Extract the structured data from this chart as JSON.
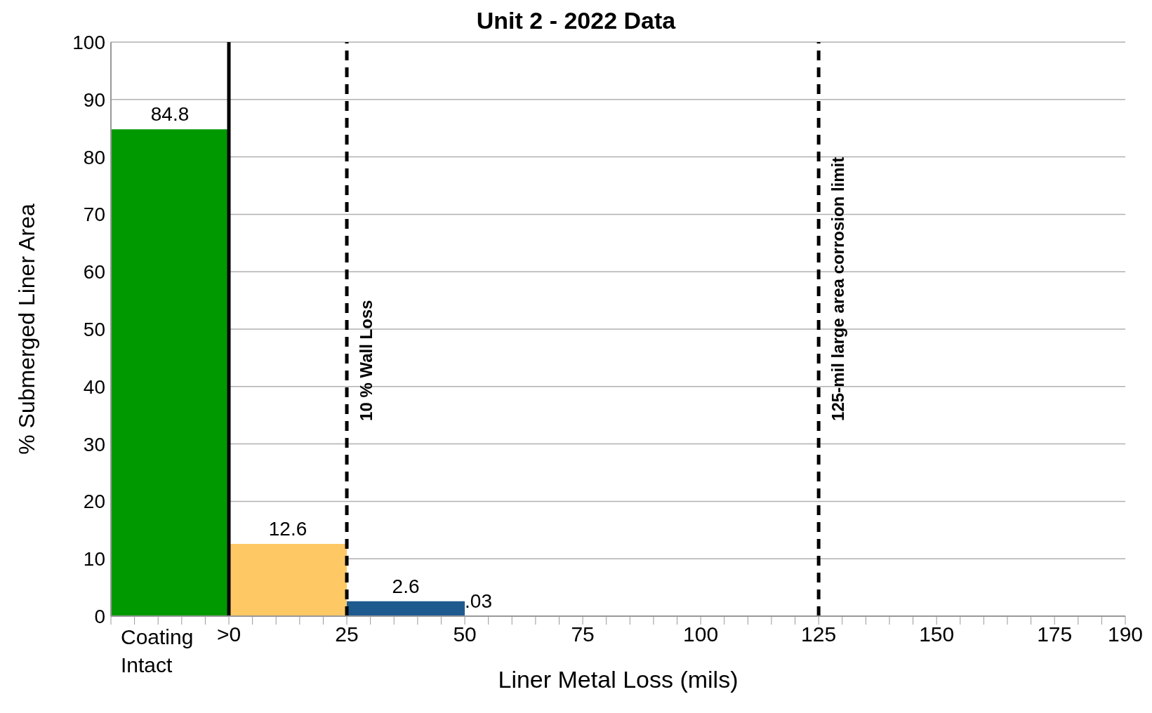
{
  "chart_data": {
    "type": "histogram",
    "title": "Unit 2 - 2022 Data",
    "xlabel": "Liner Metal Loss (mils)",
    "ylabel": "% Submerged Liner Area",
    "bins": [
      -25,
      0,
      25,
      50,
      54
    ],
    "values": [
      84.8,
      12.6,
      2.6,
      0.03
    ],
    "colors": [
      "#009900",
      "#fec965",
      "#1f5a8f",
      "#cc0000"
    ],
    "value_labels": [
      "84.8",
      "12.6",
      "2.6",
      ".03"
    ],
    "annotations": [
      "Coating Intact"
    ],
    "xlim": [
      -25,
      190
    ],
    "xticks": [
      {
        "value": -25,
        "label": null
      },
      {
        "value": -20,
        "label": null
      },
      {
        "value": -15,
        "label": null
      },
      {
        "value": -10,
        "label": null
      },
      {
        "value": -5,
        "label": null
      },
      {
        "value": 0,
        "label": ">0"
      },
      {
        "value": 5,
        "label": null
      },
      {
        "value": 10,
        "label": null
      },
      {
        "value": 15,
        "label": null
      },
      {
        "value": 20,
        "label": null
      },
      25,
      {
        "value": 30,
        "label": null
      },
      {
        "value": 35,
        "label": null
      },
      {
        "value": 40,
        "label": null
      },
      {
        "value": 45,
        "label": null
      },
      50,
      {
        "value": 55,
        "label": null
      },
      {
        "value": 60,
        "label": null
      },
      {
        "value": 65,
        "label": null
      },
      {
        "value": 70,
        "label": null
      },
      75,
      {
        "value": 80,
        "label": null
      },
      {
        "value": 85,
        "label": null
      },
      {
        "value": 90,
        "label": null
      },
      {
        "value": 95,
        "label": null
      },
      100,
      {
        "value": 105,
        "label": null
      },
      {
        "value": 110,
        "label": null
      },
      {
        "value": 115,
        "label": null
      },
      {
        "value": 120,
        "label": null
      },
      125,
      {
        "value": 130,
        "label": null
      },
      {
        "value": 135,
        "label": null
      },
      {
        "value": 140,
        "label": null
      },
      {
        "value": 145,
        "label": null
      },
      150,
      {
        "value": 155,
        "label": null
      },
      {
        "value": 160,
        "label": null
      },
      {
        "value": 165,
        "label": null
      },
      {
        "value": 170,
        "label": null
      },
      175,
      {
        "value": 180,
        "label": null
      },
      {
        "value": 185,
        "label": null
      },
      190
    ],
    "ylim": [
      0,
      100
    ],
    "yticks": [
      0,
      10,
      20,
      30,
      40,
      50,
      60,
      70,
      80,
      90,
      100
    ],
    "grid": "y",
    "ref_lines": [
      {
        "axis": "x",
        "value": 0,
        "label": null,
        "color": "#000000",
        "line_style": "solid"
      },
      {
        "axis": "x",
        "value": 25,
        "label": "10 % Wall Loss",
        "color": "#000000",
        "line_style": "dashed"
      },
      {
        "axis": "x",
        "value": 125,
        "label": "125-mil large area corrosion limit",
        "color": "#000000",
        "line_style": "dashed"
      }
    ]
  }
}
